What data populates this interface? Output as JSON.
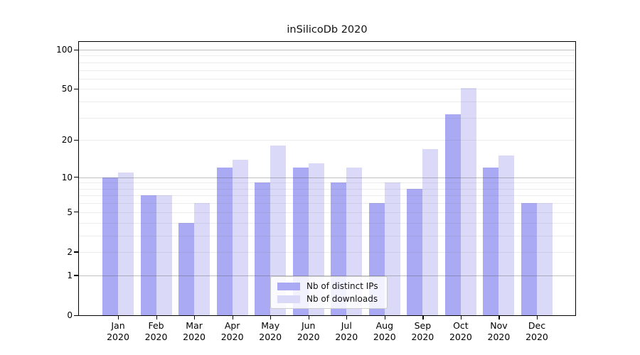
{
  "title": "inSilicoDb 2020",
  "chart_data": {
    "type": "bar",
    "title": "inSilicoDb 2020",
    "x_categories": [
      {
        "month": "Jan",
        "year": "2020"
      },
      {
        "month": "Feb",
        "year": "2020"
      },
      {
        "month": "Mar",
        "year": "2020"
      },
      {
        "month": "Apr",
        "year": "2020"
      },
      {
        "month": "May",
        "year": "2020"
      },
      {
        "month": "Jun",
        "year": "2020"
      },
      {
        "month": "Jul",
        "year": "2020"
      },
      {
        "month": "Aug",
        "year": "2020"
      },
      {
        "month": "Sep",
        "year": "2020"
      },
      {
        "month": "Oct",
        "year": "2020"
      },
      {
        "month": "Nov",
        "year": "2020"
      },
      {
        "month": "Dec",
        "year": "2020"
      }
    ],
    "series": [
      {
        "name": "Nb of distinct IPs",
        "color": "#a9a9f4",
        "values": [
          10,
          7,
          4,
          12,
          9,
          12,
          9,
          6,
          8,
          32,
          12,
          6
        ]
      },
      {
        "name": "Nb of downloads",
        "color": "#dadaf8",
        "values": [
          11,
          7,
          6,
          14,
          18,
          13,
          12,
          9,
          17,
          51,
          15,
          6
        ]
      }
    ],
    "y_axis": {
      "scale": "log1p",
      "tick_values": [
        0,
        1,
        2,
        5,
        10,
        20,
        50,
        100
      ],
      "tick_labels": [
        "0",
        "1",
        "2",
        "5",
        "10",
        "20",
        "50",
        "100"
      ],
      "major_grid_values": [
        1,
        10,
        100
      ],
      "minor_grid_values": [
        2,
        3,
        4,
        5,
        6,
        7,
        8,
        9,
        20,
        30,
        40,
        50,
        60,
        70,
        80,
        90
      ],
      "max_value": 100
    },
    "legend": {
      "position": "lower center",
      "entries": [
        "Nb of distinct IPs",
        "Nb of downloads"
      ]
    },
    "grid": true
  }
}
